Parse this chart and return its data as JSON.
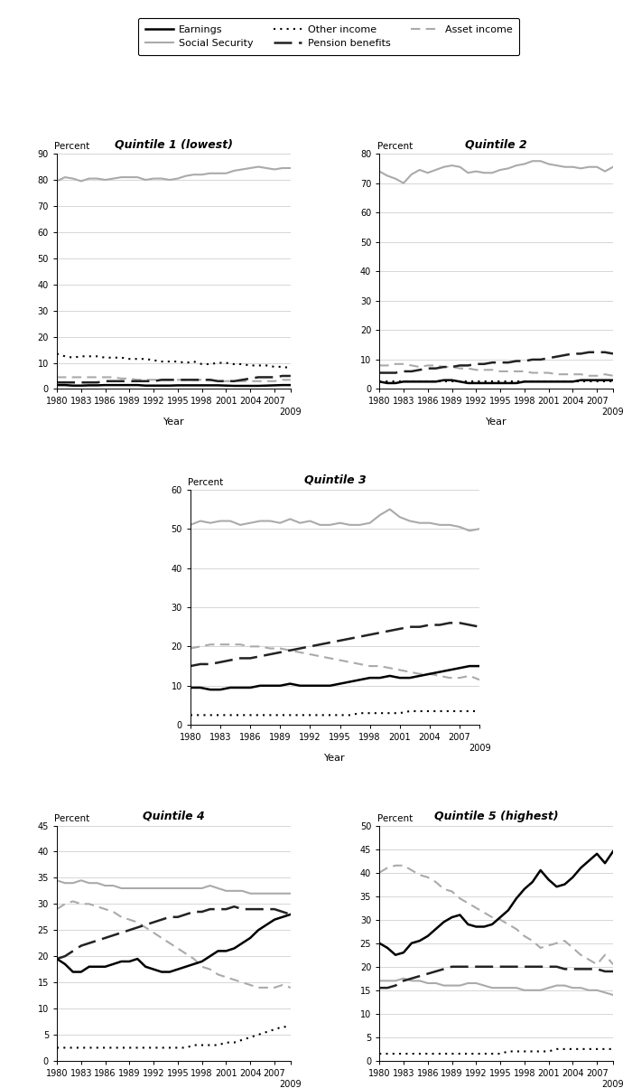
{
  "years": [
    1980,
    1981,
    1982,
    1983,
    1984,
    1985,
    1986,
    1987,
    1988,
    1989,
    1990,
    1991,
    1992,
    1993,
    1994,
    1995,
    1996,
    1997,
    1998,
    1999,
    2000,
    2001,
    2002,
    2003,
    2004,
    2005,
    2006,
    2007,
    2008,
    2009
  ],
  "q1": {
    "title": "Quintile 1 (lowest)",
    "ylim": [
      0,
      90
    ],
    "yticks": [
      0,
      10,
      20,
      30,
      40,
      50,
      60,
      70,
      80,
      90
    ],
    "earnings": [
      1.5,
      1.5,
      1.3,
      1.3,
      1.4,
      1.4,
      1.5,
      1.5,
      1.5,
      1.5,
      1.5,
      1.3,
      1.3,
      1.3,
      1.3,
      1.4,
      1.4,
      1.4,
      1.4,
      1.4,
      1.4,
      1.3,
      1.2,
      1.2,
      1.2,
      1.2,
      1.3,
      1.4,
      1.5,
      1.5
    ],
    "social_security": [
      79.5,
      81.0,
      80.5,
      79.5,
      80.5,
      80.5,
      80.0,
      80.5,
      81.0,
      81.0,
      81.0,
      80.0,
      80.5,
      80.5,
      80.0,
      80.5,
      81.5,
      82.0,
      82.0,
      82.5,
      82.5,
      82.5,
      83.5,
      84.0,
      84.5,
      85.0,
      84.5,
      84.0,
      84.5,
      84.5
    ],
    "pension": [
      2.5,
      2.5,
      2.5,
      2.5,
      2.5,
      2.5,
      3.0,
      3.0,
      3.0,
      3.0,
      3.0,
      3.0,
      3.0,
      3.5,
      3.5,
      3.5,
      3.5,
      3.5,
      3.5,
      3.5,
      3.0,
      3.0,
      3.0,
      3.5,
      4.0,
      4.5,
      4.5,
      4.5,
      5.0,
      5.0
    ],
    "asset": [
      4.5,
      4.5,
      4.5,
      4.5,
      4.5,
      4.5,
      4.5,
      4.5,
      4.0,
      4.0,
      3.5,
      3.5,
      3.5,
      3.5,
      3.5,
      3.5,
      3.5,
      3.5,
      3.5,
      3.5,
      3.0,
      3.0,
      3.0,
      3.0,
      3.0,
      3.0,
      3.0,
      3.0,
      3.5,
      3.5
    ],
    "other": [
      13.5,
      12.5,
      12.0,
      12.5,
      12.5,
      12.5,
      12.0,
      12.0,
      12.0,
      11.5,
      11.5,
      11.5,
      11.0,
      10.5,
      10.5,
      10.5,
      10.0,
      10.5,
      9.5,
      9.5,
      10.0,
      10.0,
      9.5,
      9.5,
      9.0,
      9.0,
      9.0,
      8.5,
      8.5,
      8.0
    ]
  },
  "q2": {
    "title": "Quintile 2",
    "ylim": [
      0,
      80
    ],
    "yticks": [
      0,
      10,
      20,
      30,
      40,
      50,
      60,
      70,
      80
    ],
    "earnings": [
      2.5,
      2.0,
      2.0,
      2.5,
      2.5,
      2.5,
      2.5,
      2.5,
      3.0,
      3.0,
      2.5,
      2.0,
      2.0,
      2.0,
      2.0,
      2.0,
      2.0,
      2.0,
      2.5,
      2.5,
      2.5,
      2.5,
      2.5,
      2.5,
      2.5,
      3.0,
      3.0,
      3.0,
      3.0,
      3.0
    ],
    "social_security": [
      74.0,
      72.5,
      71.5,
      70.0,
      73.0,
      74.5,
      73.5,
      74.5,
      75.5,
      76.0,
      75.5,
      73.5,
      74.0,
      73.5,
      73.5,
      74.5,
      75.0,
      76.0,
      76.5,
      77.5,
      77.5,
      76.5,
      76.0,
      75.5,
      75.5,
      75.0,
      75.5,
      75.5,
      74.0,
      75.5
    ],
    "pension": [
      5.5,
      5.5,
      5.5,
      6.0,
      6.0,
      6.5,
      7.0,
      7.0,
      7.5,
      7.5,
      8.0,
      8.0,
      8.5,
      8.5,
      9.0,
      9.0,
      9.0,
      9.5,
      9.5,
      10.0,
      10.0,
      10.5,
      11.0,
      11.5,
      12.0,
      12.0,
      12.5,
      12.5,
      12.5,
      12.0
    ],
    "asset": [
      8.0,
      8.0,
      8.5,
      8.5,
      8.0,
      7.5,
      8.0,
      8.0,
      7.5,
      7.5,
      7.0,
      7.0,
      6.5,
      6.5,
      6.5,
      6.0,
      6.0,
      6.0,
      6.0,
      5.5,
      5.5,
      5.5,
      5.0,
      5.0,
      5.0,
      5.0,
      4.5,
      4.5,
      5.0,
      4.5
    ],
    "other": [
      2.5,
      2.5,
      2.5,
      2.5,
      2.5,
      2.5,
      2.5,
      2.5,
      2.5,
      2.5,
      2.5,
      2.5,
      2.5,
      2.5,
      2.5,
      2.5,
      2.5,
      2.5,
      2.5,
      2.5,
      2.5,
      2.5,
      2.5,
      2.5,
      2.5,
      2.5,
      2.5,
      2.5,
      2.5,
      2.5
    ]
  },
  "q3": {
    "title": "Quintile 3",
    "ylim": [
      0,
      60
    ],
    "yticks": [
      0,
      10,
      20,
      30,
      40,
      50,
      60
    ],
    "earnings": [
      9.5,
      9.5,
      9.0,
      9.0,
      9.5,
      9.5,
      9.5,
      10.0,
      10.0,
      10.0,
      10.5,
      10.0,
      10.0,
      10.0,
      10.0,
      10.5,
      11.0,
      11.5,
      12.0,
      12.0,
      12.5,
      12.0,
      12.0,
      12.5,
      13.0,
      13.5,
      14.0,
      14.5,
      15.0,
      15.0
    ],
    "social_security": [
      51.0,
      52.0,
      51.5,
      52.0,
      52.0,
      51.0,
      51.5,
      52.0,
      52.0,
      51.5,
      52.5,
      51.5,
      52.0,
      51.0,
      51.0,
      51.5,
      51.0,
      51.0,
      51.5,
      53.5,
      55.0,
      53.0,
      52.0,
      51.5,
      51.5,
      51.0,
      51.0,
      50.5,
      49.5,
      50.0
    ],
    "pension": [
      15.0,
      15.5,
      15.5,
      16.0,
      16.5,
      17.0,
      17.0,
      17.5,
      18.0,
      18.5,
      19.0,
      19.5,
      20.0,
      20.5,
      21.0,
      21.5,
      22.0,
      22.5,
      23.0,
      23.5,
      24.0,
      24.5,
      25.0,
      25.0,
      25.5,
      25.5,
      26.0,
      26.0,
      25.5,
      25.0
    ],
    "asset": [
      19.5,
      20.0,
      20.5,
      20.5,
      20.5,
      20.5,
      20.0,
      20.0,
      19.5,
      19.5,
      19.0,
      18.5,
      18.0,
      17.5,
      17.0,
      16.5,
      16.0,
      15.5,
      15.0,
      15.0,
      14.5,
      14.0,
      13.5,
      13.0,
      13.0,
      12.5,
      12.0,
      12.0,
      12.5,
      11.5
    ],
    "other": [
      2.5,
      2.5,
      2.5,
      2.5,
      2.5,
      2.5,
      2.5,
      2.5,
      2.5,
      2.5,
      2.5,
      2.5,
      2.5,
      2.5,
      2.5,
      2.5,
      2.5,
      3.0,
      3.0,
      3.0,
      3.0,
      3.0,
      3.5,
      3.5,
      3.5,
      3.5,
      3.5,
      3.5,
      3.5,
      3.5
    ]
  },
  "q4": {
    "title": "Quintile 4",
    "ylim": [
      0,
      45
    ],
    "yticks": [
      0,
      5,
      10,
      15,
      20,
      25,
      30,
      35,
      40,
      45
    ],
    "earnings": [
      19.5,
      18.5,
      17.0,
      17.0,
      18.0,
      18.0,
      18.0,
      18.5,
      19.0,
      19.0,
      19.5,
      18.0,
      17.5,
      17.0,
      17.0,
      17.5,
      18.0,
      18.5,
      19.0,
      20.0,
      21.0,
      21.0,
      21.5,
      22.5,
      23.5,
      25.0,
      26.0,
      27.0,
      27.5,
      28.0
    ],
    "social_security": [
      34.5,
      34.0,
      34.0,
      34.5,
      34.0,
      34.0,
      33.5,
      33.5,
      33.0,
      33.0,
      33.0,
      33.0,
      33.0,
      33.0,
      33.0,
      33.0,
      33.0,
      33.0,
      33.0,
      33.5,
      33.0,
      32.5,
      32.5,
      32.5,
      32.0,
      32.0,
      32.0,
      32.0,
      32.0,
      32.0
    ],
    "pension": [
      19.5,
      20.0,
      21.0,
      22.0,
      22.5,
      23.0,
      23.5,
      24.0,
      24.5,
      25.0,
      25.5,
      26.0,
      26.5,
      27.0,
      27.5,
      27.5,
      28.0,
      28.5,
      28.5,
      29.0,
      29.0,
      29.0,
      29.5,
      29.0,
      29.0,
      29.0,
      29.0,
      29.0,
      28.5,
      28.0
    ],
    "asset": [
      29.0,
      30.0,
      30.5,
      30.0,
      30.0,
      29.5,
      29.0,
      28.5,
      27.5,
      27.0,
      26.5,
      25.5,
      24.5,
      23.5,
      22.5,
      21.5,
      20.5,
      19.5,
      18.0,
      17.5,
      16.5,
      16.0,
      15.5,
      15.0,
      14.5,
      14.0,
      14.0,
      14.0,
      14.5,
      14.0
    ],
    "other": [
      2.5,
      2.5,
      2.5,
      2.5,
      2.5,
      2.5,
      2.5,
      2.5,
      2.5,
      2.5,
      2.5,
      2.5,
      2.5,
      2.5,
      2.5,
      2.5,
      2.5,
      3.0,
      3.0,
      3.0,
      3.0,
      3.5,
      3.5,
      4.0,
      4.5,
      5.0,
      5.5,
      6.0,
      6.5,
      6.5
    ]
  },
  "q5": {
    "title": "Quintile 5 (highest)",
    "ylim": [
      0,
      50
    ],
    "yticks": [
      0,
      5,
      10,
      15,
      20,
      25,
      30,
      35,
      40,
      45,
      50
    ],
    "earnings": [
      25.0,
      24.0,
      22.5,
      23.0,
      25.0,
      25.5,
      26.5,
      28.0,
      29.5,
      30.5,
      31.0,
      29.0,
      28.5,
      28.5,
      29.0,
      30.5,
      32.0,
      34.5,
      36.5,
      38.0,
      40.5,
      38.5,
      37.0,
      37.5,
      39.0,
      41.0,
      42.5,
      44.0,
      42.0,
      44.5
    ],
    "social_security": [
      17.0,
      17.0,
      17.0,
      17.5,
      17.0,
      17.0,
      16.5,
      16.5,
      16.0,
      16.0,
      16.0,
      16.5,
      16.5,
      16.0,
      15.5,
      15.5,
      15.5,
      15.5,
      15.0,
      15.0,
      15.0,
      15.5,
      16.0,
      16.0,
      15.5,
      15.5,
      15.0,
      15.0,
      14.5,
      14.0
    ],
    "pension": [
      15.5,
      15.5,
      16.0,
      17.0,
      17.5,
      18.0,
      18.5,
      19.0,
      19.5,
      20.0,
      20.0,
      20.0,
      20.0,
      20.0,
      20.0,
      20.0,
      20.0,
      20.0,
      20.0,
      20.0,
      20.0,
      20.0,
      20.0,
      19.5,
      19.5,
      19.5,
      19.5,
      19.5,
      19.0,
      19.0
    ],
    "asset": [
      40.0,
      41.0,
      41.5,
      41.5,
      40.5,
      39.5,
      39.0,
      38.0,
      36.5,
      36.0,
      34.5,
      33.5,
      32.5,
      31.5,
      30.5,
      30.0,
      29.0,
      28.0,
      26.5,
      25.5,
      24.0,
      24.5,
      25.0,
      25.5,
      24.0,
      22.5,
      21.5,
      20.5,
      22.5,
      20.5
    ],
    "other": [
      1.5,
      1.5,
      1.5,
      1.5,
      1.5,
      1.5,
      1.5,
      1.5,
      1.5,
      1.5,
      1.5,
      1.5,
      1.5,
      1.5,
      1.5,
      1.5,
      2.0,
      2.0,
      2.0,
      2.0,
      2.0,
      2.0,
      2.5,
      2.5,
      2.5,
      2.5,
      2.5,
      2.5,
      2.5,
      2.5
    ]
  },
  "line_colors": {
    "earnings": "#000000",
    "social_security": "#aaaaaa",
    "pension": "#222222",
    "asset": "#aaaaaa",
    "other": "#000000"
  },
  "legend_items": [
    {
      "label": "Earnings",
      "color": "#000000",
      "ls": "solid",
      "lw": 1.8
    },
    {
      "label": "Social Security",
      "color": "#aaaaaa",
      "ls": "solid",
      "lw": 1.8
    },
    {
      "label": "Other income",
      "color": "#000000",
      "ls": "dotted",
      "lw": 1.5
    },
    {
      "label": "Pension benefits",
      "color": "#222222",
      "ls": "dashed",
      "lw": 1.8
    },
    {
      "label": "Asset income",
      "color": "#aaaaaa",
      "ls": "dashed",
      "lw": 1.8
    }
  ]
}
